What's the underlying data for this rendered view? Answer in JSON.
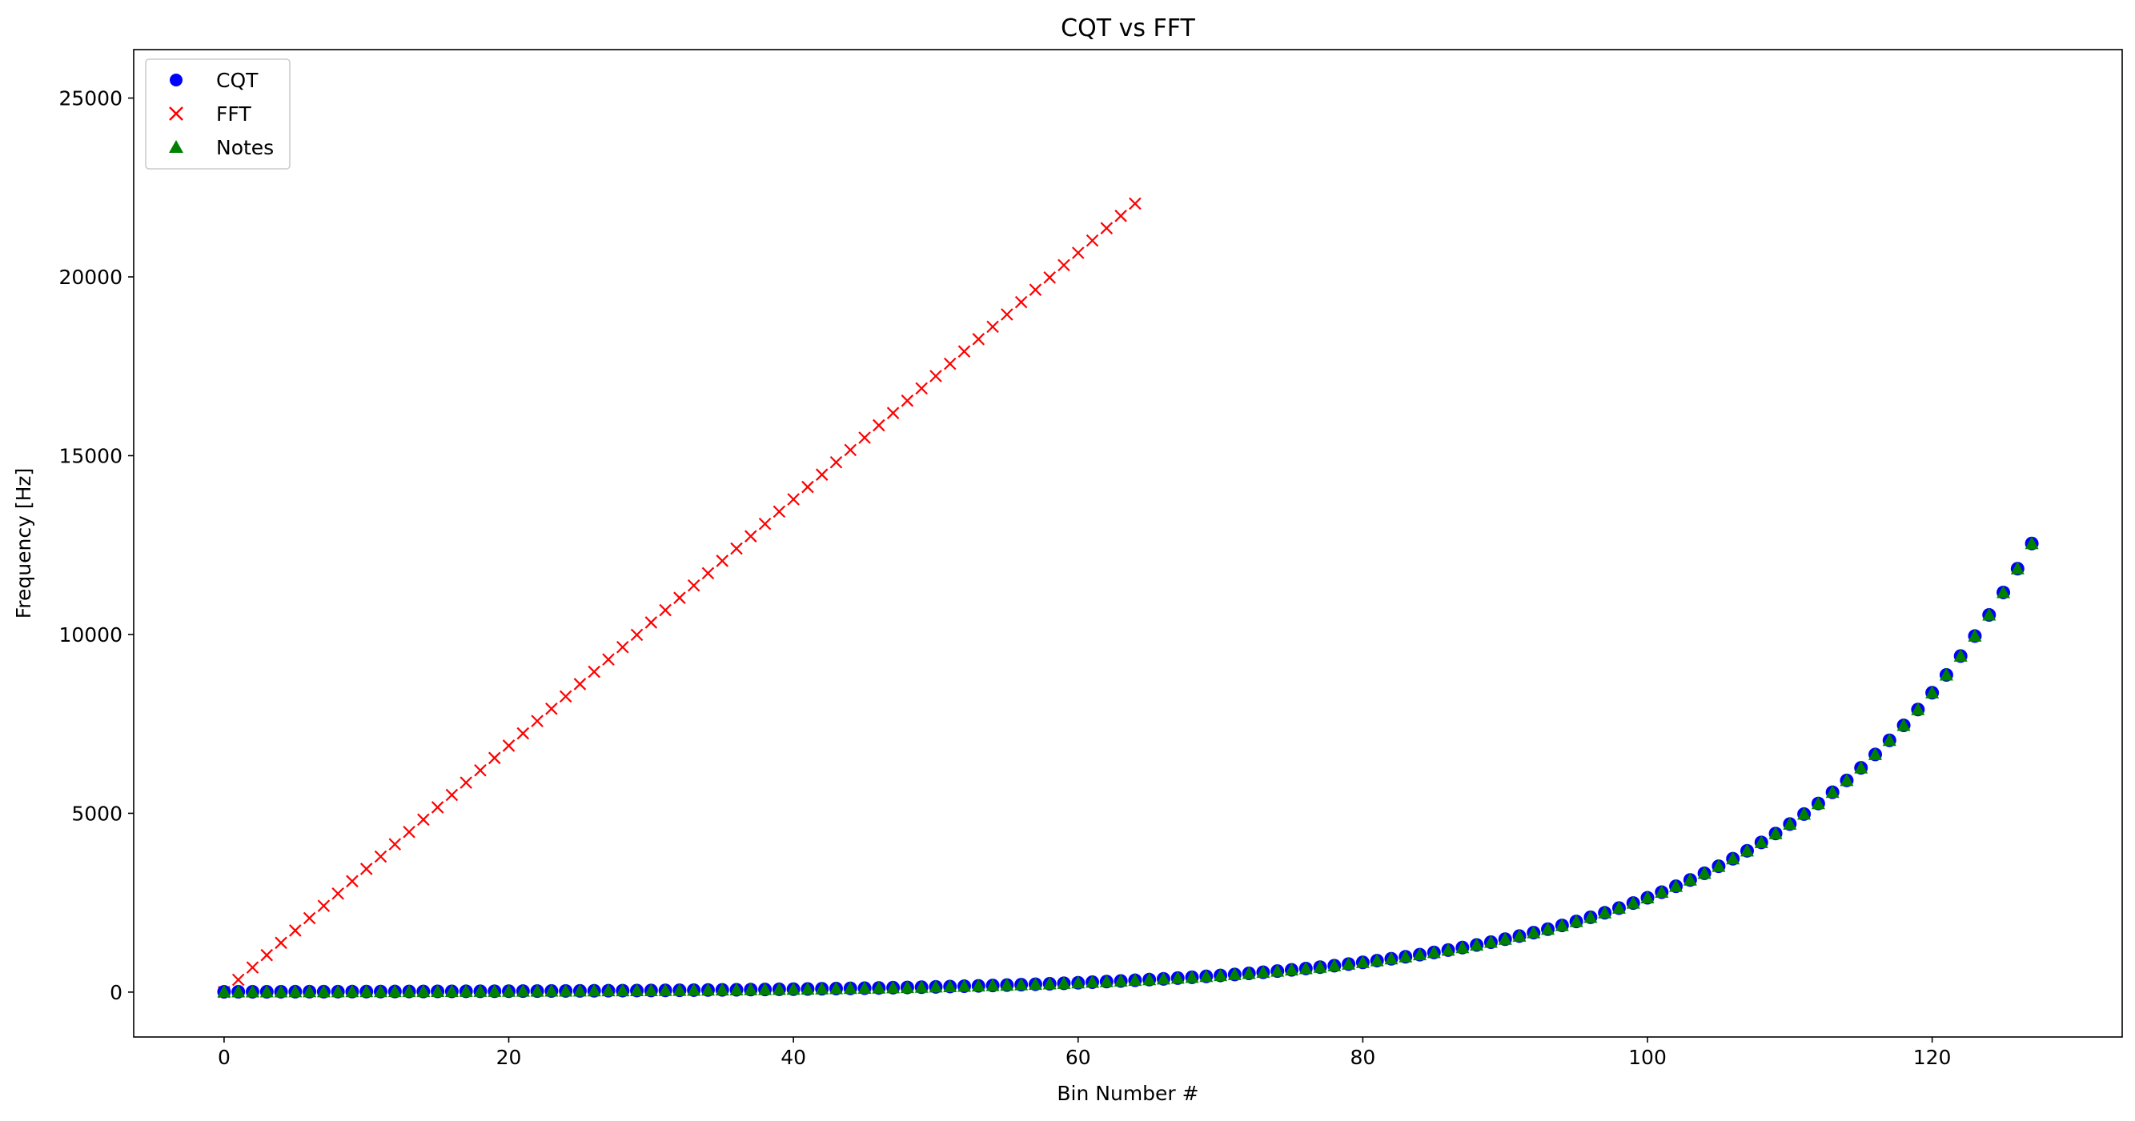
{
  "chart_data": {
    "type": "scatter",
    "title": "CQT vs FFT",
    "xlabel": "Bin Number #",
    "ylabel": "Frequency [Hz]",
    "xlim": [
      -6.35,
      133.35
    ],
    "ylim": [
      -1255,
      26355
    ],
    "xticks": [
      0,
      20,
      40,
      60,
      80,
      100,
      120
    ],
    "yticks": [
      0,
      5000,
      10000,
      15000,
      20000,
      25000
    ],
    "grid": false,
    "legend": "upper-left",
    "series": [
      {
        "name": "CQT",
        "marker": "circle",
        "color": "#0000ff",
        "edge": "#0000ff",
        "description": "Logarithmically spaced bins: f = 8.1758 * 2^(n/12), n = 0..127"
      },
      {
        "name": "FFT",
        "marker": "x",
        "color": "#ff0000",
        "description": "Linearly spaced bins: f = n * 344.53, n = 0..64"
      },
      {
        "name": "Notes",
        "marker": "triangle",
        "color": "#008000",
        "description": "MIDI note frequencies, identical to CQT bins"
      }
    ],
    "cqt": {
      "f0": 8.1758,
      "bins_per_octave": 12,
      "n_bins": 128
    },
    "fft": {
      "df": 344.53,
      "n_bins": 65
    }
  }
}
